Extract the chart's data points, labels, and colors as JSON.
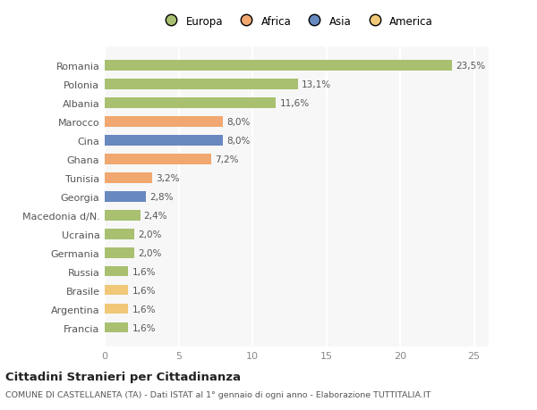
{
  "categories": [
    "Francia",
    "Argentina",
    "Brasile",
    "Russia",
    "Germania",
    "Ucraina",
    "Macedonia d/N.",
    "Georgia",
    "Tunisia",
    "Ghana",
    "Cina",
    "Marocco",
    "Albania",
    "Polonia",
    "Romania"
  ],
  "values": [
    1.6,
    1.6,
    1.6,
    1.6,
    2.0,
    2.0,
    2.4,
    2.8,
    3.2,
    7.2,
    8.0,
    8.0,
    11.6,
    13.1,
    23.5
  ],
  "labels": [
    "1,6%",
    "1,6%",
    "1,6%",
    "1,6%",
    "2,0%",
    "2,0%",
    "2,4%",
    "2,8%",
    "3,2%",
    "7,2%",
    "8,0%",
    "8,0%",
    "11,6%",
    "13,1%",
    "23,5%"
  ],
  "colors": [
    "#a8c070",
    "#f0c878",
    "#f0c878",
    "#a8c070",
    "#a8c070",
    "#a8c070",
    "#a8c070",
    "#6888c0",
    "#f0a870",
    "#f0a870",
    "#6888c0",
    "#f0a870",
    "#a8c070",
    "#a8c070",
    "#a8c070"
  ],
  "continent_colors": {
    "Europa": "#a8c070",
    "Africa": "#f0a870",
    "Asia": "#6888c0",
    "America": "#f0c878"
  },
  "legend_labels": [
    "Europa",
    "Africa",
    "Asia",
    "America"
  ],
  "title": "Cittadini Stranieri per Cittadinanza",
  "subtitle": "COMUNE DI CASTELLANETA (TA) - Dati ISTAT al 1° gennaio di ogni anno - Elaborazione TUTTITALIA.IT",
  "xlim": [
    0,
    26
  ],
  "xticks": [
    0,
    5,
    10,
    15,
    20,
    25
  ],
  "background_color": "#ffffff",
  "plot_bg_color": "#f7f7f7",
  "grid_color": "#ffffff",
  "label_color": "#555555",
  "tick_color": "#888888"
}
